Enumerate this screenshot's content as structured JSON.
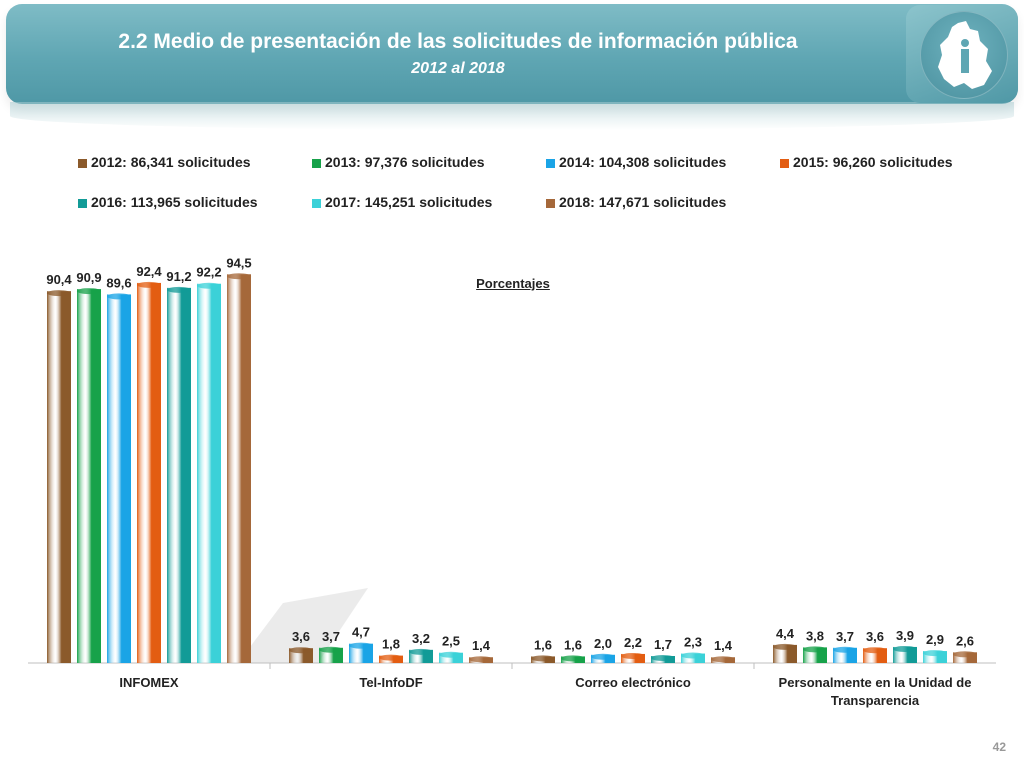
{
  "header": {
    "title": "2.2 Medio de presentación de las solicitudes de información pública",
    "subtitle": "2012 al 2018"
  },
  "page_number": "42",
  "colors": {
    "banner": "#5fa6b3",
    "series": [
      "#8b5a2b",
      "#17a24a",
      "#1aa4e6",
      "#e35d12",
      "#129b97",
      "#3bd1d8",
      "#a5683a"
    ]
  },
  "chart_data": {
    "type": "bar",
    "title": "Porcentajes",
    "xlabel": "",
    "ylabel": "",
    "ylim": [
      0,
      100
    ],
    "categories": [
      "INFOMEX",
      "Tel-InfoDF",
      "Correo electrónico",
      "Personalmente en la Unidad de Transparencia"
    ],
    "legend_position": "top",
    "series": [
      {
        "name": "2012: 86,341 solicitudes",
        "values": [
          90.4,
          3.6,
          1.6,
          4.4
        ],
        "labels": [
          "90,4",
          "3,6",
          "1,6",
          "4,4"
        ]
      },
      {
        "name": "2013: 97,376 solicitudes",
        "values": [
          90.9,
          3.7,
          1.6,
          3.8
        ],
        "labels": [
          "90,9",
          "3,7",
          "1,6",
          "3,8"
        ]
      },
      {
        "name": "2014: 104,308 solicitudes",
        "values": [
          89.6,
          4.7,
          2.0,
          3.7
        ],
        "labels": [
          "89,6",
          "4,7",
          "2,0",
          "3,7"
        ]
      },
      {
        "name": "2015: 96,260 solicitudes",
        "values": [
          92.4,
          1.8,
          2.2,
          3.6
        ],
        "labels": [
          "92,4",
          "1,8",
          "2,2",
          "3,6"
        ]
      },
      {
        "name": "2016: 113,965 solicitudes",
        "values": [
          91.2,
          3.2,
          1.7,
          3.9
        ],
        "labels": [
          "91,2",
          "3,2",
          "1,7",
          "3,9"
        ]
      },
      {
        "name": "2017: 145,251 solicitudes",
        "values": [
          92.2,
          2.5,
          2.3,
          2.9
        ],
        "labels": [
          "92,2",
          "2,5",
          "2,3",
          "2,9"
        ]
      },
      {
        "name": "2018: 147,671 solicitudes",
        "values": [
          94.5,
          1.4,
          1.4,
          2.6
        ],
        "labels": [
          "94,5",
          "1,4",
          "1,4",
          "2,6"
        ]
      }
    ]
  }
}
